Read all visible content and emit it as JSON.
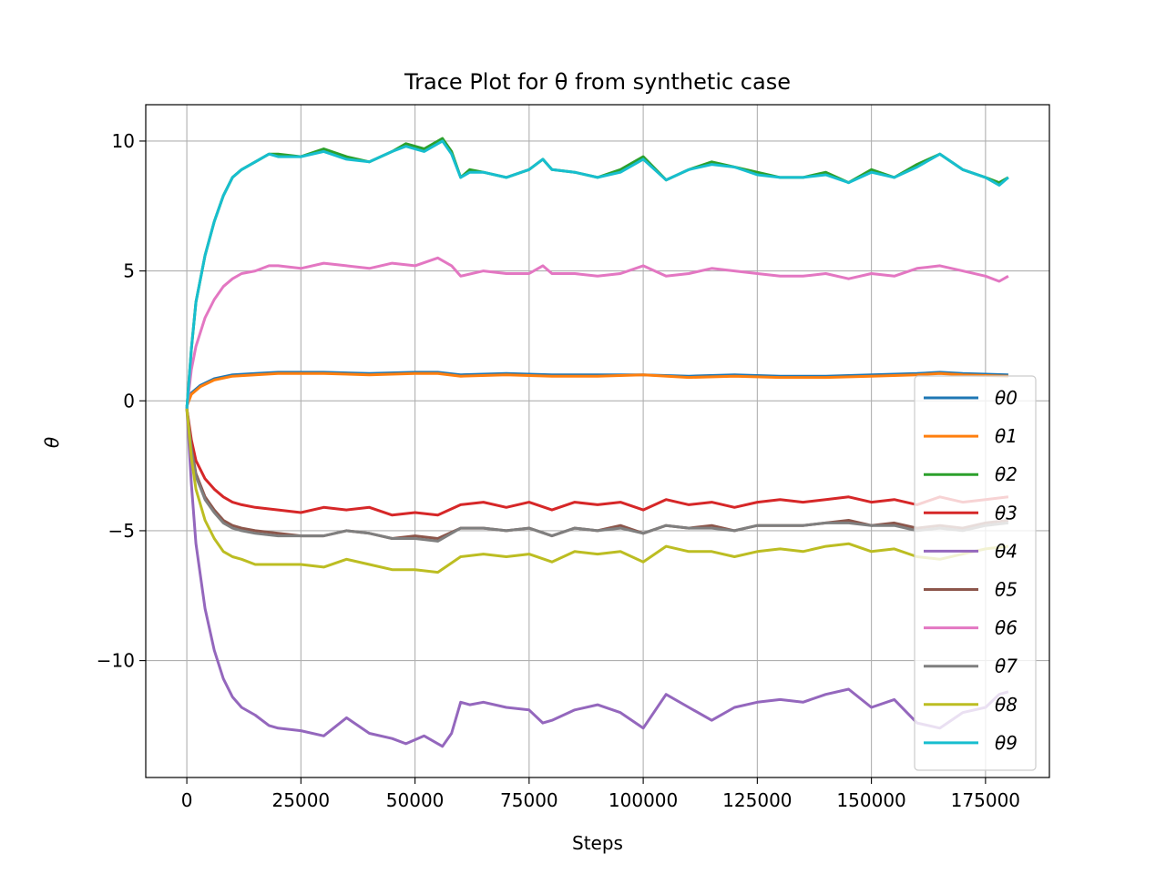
{
  "chart_data": {
    "type": "line",
    "title": "Trace Plot for θ from synthetic case",
    "xlabel": "Steps",
    "ylabel": "θ",
    "xlim": [
      -9000,
      189000
    ],
    "ylim": [
      -14.5,
      11.4
    ],
    "x_ticks": [
      0,
      25000,
      50000,
      75000,
      100000,
      125000,
      150000,
      175000
    ],
    "y_ticks": [
      10,
      5,
      0,
      -5,
      -10
    ],
    "y_tick_labels": [
      "10",
      "5",
      "0",
      "−5",
      "−10"
    ],
    "grid": true,
    "legend_position": "lower-right",
    "series": [
      {
        "name": "θ0",
        "color": "#1f77b4",
        "x": [
          0,
          1000,
          3000,
          6000,
          10000,
          15000,
          20000,
          30000,
          40000,
          50000,
          55000,
          60000,
          70000,
          80000,
          90000,
          100000,
          110000,
          120000,
          130000,
          140000,
          150000,
          160000,
          165000,
          170000,
          180000
        ],
        "y": [
          -0.2,
          0.3,
          0.6,
          0.85,
          1.0,
          1.05,
          1.1,
          1.1,
          1.05,
          1.1,
          1.1,
          1.0,
          1.05,
          1.0,
          1.0,
          1.0,
          0.95,
          1.0,
          0.95,
          0.95,
          1.0,
          1.05,
          1.1,
          1.05,
          1.0
        ]
      },
      {
        "name": "θ1",
        "color": "#ff7f0e",
        "x": [
          0,
          1000,
          3000,
          6000,
          10000,
          15000,
          20000,
          30000,
          40000,
          50000,
          55000,
          60000,
          70000,
          80000,
          90000,
          100000,
          110000,
          120000,
          130000,
          140000,
          150000,
          160000,
          165000,
          170000,
          180000
        ],
        "y": [
          -0.2,
          0.25,
          0.55,
          0.8,
          0.95,
          1.0,
          1.05,
          1.05,
          1.0,
          1.05,
          1.05,
          0.95,
          1.0,
          0.95,
          0.95,
          1.0,
          0.9,
          0.95,
          0.9,
          0.9,
          0.95,
          1.0,
          1.05,
          1.0,
          0.95
        ]
      },
      {
        "name": "θ2",
        "color": "#2ca02c",
        "x": [
          0,
          1000,
          2000,
          4000,
          6000,
          8000,
          10000,
          12000,
          15000,
          18000,
          20000,
          25000,
          30000,
          35000,
          40000,
          45000,
          48000,
          52000,
          56000,
          58000,
          60000,
          62000,
          65000,
          70000,
          75000,
          78000,
          80000,
          85000,
          90000,
          95000,
          100000,
          105000,
          110000,
          115000,
          120000,
          125000,
          130000,
          135000,
          140000,
          145000,
          150000,
          155000,
          160000,
          165000,
          170000,
          175000,
          178000,
          180000
        ],
        "y": [
          -0.3,
          2.0,
          3.8,
          5.6,
          6.9,
          7.9,
          8.6,
          8.9,
          9.2,
          9.5,
          9.5,
          9.4,
          9.7,
          9.4,
          9.2,
          9.6,
          9.9,
          9.7,
          10.1,
          9.6,
          8.6,
          8.9,
          8.8,
          8.6,
          8.9,
          9.3,
          8.9,
          8.8,
          8.6,
          8.9,
          9.4,
          8.5,
          8.9,
          9.2,
          9.0,
          8.8,
          8.6,
          8.6,
          8.8,
          8.4,
          8.9,
          8.6,
          9.1,
          9.5,
          8.9,
          8.6,
          8.4,
          8.6
        ]
      },
      {
        "name": "θ3",
        "color": "#d62728",
        "x": [
          0,
          1000,
          2000,
          4000,
          6000,
          8000,
          10000,
          12000,
          15000,
          20000,
          25000,
          30000,
          35000,
          40000,
          45000,
          50000,
          55000,
          60000,
          65000,
          70000,
          75000,
          80000,
          85000,
          90000,
          95000,
          100000,
          105000,
          110000,
          115000,
          120000,
          125000,
          130000,
          135000,
          140000,
          145000,
          150000,
          155000,
          160000,
          165000,
          170000,
          175000,
          180000
        ],
        "y": [
          -0.3,
          -1.5,
          -2.3,
          -3.0,
          -3.4,
          -3.7,
          -3.9,
          -4.0,
          -4.1,
          -4.2,
          -4.3,
          -4.1,
          -4.2,
          -4.1,
          -4.4,
          -4.3,
          -4.4,
          -4.0,
          -3.9,
          -4.1,
          -3.9,
          -4.2,
          -3.9,
          -4.0,
          -3.9,
          -4.2,
          -3.8,
          -4.0,
          -3.9,
          -4.1,
          -3.9,
          -3.8,
          -3.9,
          -3.8,
          -3.7,
          -3.9,
          -3.8,
          -4.0,
          -3.7,
          -3.9,
          -3.8,
          -3.7
        ]
      },
      {
        "name": "θ4",
        "color": "#9467bd",
        "x": [
          0,
          1000,
          2000,
          4000,
          6000,
          8000,
          10000,
          12000,
          15000,
          18000,
          20000,
          25000,
          30000,
          35000,
          40000,
          45000,
          48000,
          52000,
          56000,
          58000,
          60000,
          62000,
          65000,
          70000,
          75000,
          78000,
          80000,
          85000,
          90000,
          95000,
          100000,
          105000,
          110000,
          115000,
          120000,
          125000,
          130000,
          135000,
          140000,
          145000,
          150000,
          155000,
          160000,
          165000,
          170000,
          175000,
          178000,
          180000
        ],
        "y": [
          -0.3,
          -3.2,
          -5.5,
          -8.0,
          -9.6,
          -10.7,
          -11.4,
          -11.8,
          -12.1,
          -12.5,
          -12.6,
          -12.7,
          -12.9,
          -12.2,
          -12.8,
          -13.0,
          -13.2,
          -12.9,
          -13.3,
          -12.8,
          -11.6,
          -11.7,
          -11.6,
          -11.8,
          -11.9,
          -12.4,
          -12.3,
          -11.9,
          -11.7,
          -12.0,
          -12.6,
          -11.3,
          -11.8,
          -12.3,
          -11.8,
          -11.6,
          -11.5,
          -11.6,
          -11.3,
          -11.1,
          -11.8,
          -11.5,
          -12.4,
          -12.6,
          -12.0,
          -11.8,
          -11.3,
          -11.2
        ]
      },
      {
        "name": "θ5",
        "color": "#8c564b",
        "x": [
          0,
          1000,
          2000,
          4000,
          6000,
          8000,
          10000,
          12000,
          15000,
          20000,
          25000,
          30000,
          35000,
          40000,
          45000,
          50000,
          55000,
          60000,
          65000,
          70000,
          75000,
          80000,
          85000,
          90000,
          95000,
          100000,
          105000,
          110000,
          115000,
          120000,
          125000,
          130000,
          135000,
          140000,
          145000,
          150000,
          155000,
          160000,
          165000,
          170000,
          175000,
          180000
        ],
        "y": [
          -0.3,
          -1.8,
          -2.8,
          -3.7,
          -4.2,
          -4.6,
          -4.8,
          -4.9,
          -5.0,
          -5.1,
          -5.2,
          -5.2,
          -5.0,
          -5.1,
          -5.3,
          -5.2,
          -5.3,
          -4.9,
          -4.9,
          -5.0,
          -4.9,
          -5.2,
          -4.9,
          -5.0,
          -4.8,
          -5.1,
          -4.8,
          -4.9,
          -4.8,
          -5.0,
          -4.8,
          -4.8,
          -4.8,
          -4.7,
          -4.6,
          -4.8,
          -4.7,
          -4.9,
          -4.8,
          -4.9,
          -4.7,
          -4.6
        ]
      },
      {
        "name": "θ6",
        "color": "#e377c2",
        "x": [
          0,
          1000,
          2000,
          4000,
          6000,
          8000,
          10000,
          12000,
          15000,
          18000,
          20000,
          25000,
          30000,
          35000,
          40000,
          45000,
          50000,
          55000,
          58000,
          60000,
          65000,
          70000,
          75000,
          78000,
          80000,
          85000,
          90000,
          95000,
          100000,
          105000,
          110000,
          115000,
          120000,
          125000,
          130000,
          135000,
          140000,
          145000,
          150000,
          155000,
          160000,
          165000,
          170000,
          175000,
          178000,
          180000
        ],
        "y": [
          -0.3,
          1.2,
          2.1,
          3.2,
          3.9,
          4.4,
          4.7,
          4.9,
          5.0,
          5.2,
          5.2,
          5.1,
          5.3,
          5.2,
          5.1,
          5.3,
          5.2,
          5.5,
          5.2,
          4.8,
          5.0,
          4.9,
          4.9,
          5.2,
          4.9,
          4.9,
          4.8,
          4.9,
          5.2,
          4.8,
          4.9,
          5.1,
          5.0,
          4.9,
          4.8,
          4.8,
          4.9,
          4.7,
          4.9,
          4.8,
          5.1,
          5.2,
          5.0,
          4.8,
          4.6,
          4.8
        ]
      },
      {
        "name": "θ7",
        "color": "#7f7f7f",
        "x": [
          0,
          1000,
          2000,
          4000,
          6000,
          8000,
          10000,
          12000,
          15000,
          20000,
          25000,
          30000,
          35000,
          40000,
          45000,
          50000,
          55000,
          60000,
          65000,
          70000,
          75000,
          80000,
          85000,
          90000,
          95000,
          100000,
          105000,
          110000,
          115000,
          120000,
          125000,
          130000,
          135000,
          140000,
          145000,
          150000,
          155000,
          160000,
          165000,
          170000,
          175000,
          180000
        ],
        "y": [
          -0.3,
          -1.9,
          -2.9,
          -3.8,
          -4.3,
          -4.7,
          -4.9,
          -5.0,
          -5.1,
          -5.2,
          -5.2,
          -5.2,
          -5.0,
          -5.1,
          -5.3,
          -5.3,
          -5.4,
          -4.9,
          -4.9,
          -5.0,
          -4.9,
          -5.2,
          -4.9,
          -5.0,
          -4.9,
          -5.1,
          -4.8,
          -4.9,
          -4.9,
          -5.0,
          -4.8,
          -4.8,
          -4.8,
          -4.7,
          -4.7,
          -4.8,
          -4.8,
          -5.0,
          -4.9,
          -5.0,
          -4.8,
          -4.7
        ]
      },
      {
        "name": "θ8",
        "color": "#bcbd22",
        "x": [
          0,
          1000,
          2000,
          4000,
          6000,
          8000,
          10000,
          12000,
          15000,
          20000,
          25000,
          30000,
          35000,
          40000,
          45000,
          50000,
          55000,
          60000,
          65000,
          70000,
          75000,
          80000,
          85000,
          90000,
          95000,
          100000,
          105000,
          110000,
          115000,
          120000,
          125000,
          130000,
          135000,
          140000,
          145000,
          150000,
          155000,
          160000,
          165000,
          170000,
          175000,
          180000
        ],
        "y": [
          -0.3,
          -2.2,
          -3.4,
          -4.6,
          -5.3,
          -5.8,
          -6.0,
          -6.1,
          -6.3,
          -6.3,
          -6.3,
          -6.4,
          -6.1,
          -6.3,
          -6.5,
          -6.5,
          -6.6,
          -6.0,
          -5.9,
          -6.0,
          -5.9,
          -6.2,
          -5.8,
          -5.9,
          -5.8,
          -6.2,
          -5.6,
          -5.8,
          -5.8,
          -6.0,
          -5.8,
          -5.7,
          -5.8,
          -5.6,
          -5.5,
          -5.8,
          -5.7,
          -6.0,
          -6.1,
          -5.9,
          -5.7,
          -5.6
        ]
      },
      {
        "name": "θ9",
        "color": "#17becf",
        "x": [
          0,
          1000,
          2000,
          4000,
          6000,
          8000,
          10000,
          12000,
          15000,
          18000,
          20000,
          25000,
          30000,
          35000,
          40000,
          45000,
          48000,
          52000,
          56000,
          58000,
          60000,
          62000,
          65000,
          70000,
          75000,
          78000,
          80000,
          85000,
          90000,
          95000,
          100000,
          105000,
          110000,
          115000,
          120000,
          125000,
          130000,
          135000,
          140000,
          145000,
          150000,
          155000,
          160000,
          165000,
          170000,
          175000,
          178000,
          180000
        ],
        "y": [
          -0.3,
          2.0,
          3.8,
          5.6,
          6.9,
          7.9,
          8.6,
          8.9,
          9.2,
          9.5,
          9.4,
          9.4,
          9.6,
          9.3,
          9.2,
          9.6,
          9.8,
          9.6,
          10.0,
          9.5,
          8.6,
          8.8,
          8.8,
          8.6,
          8.9,
          9.3,
          8.9,
          8.8,
          8.6,
          8.8,
          9.3,
          8.5,
          8.9,
          9.1,
          9.0,
          8.7,
          8.6,
          8.6,
          8.7,
          8.4,
          8.8,
          8.6,
          9.0,
          9.5,
          8.9,
          8.6,
          8.3,
          8.6
        ]
      }
    ]
  }
}
